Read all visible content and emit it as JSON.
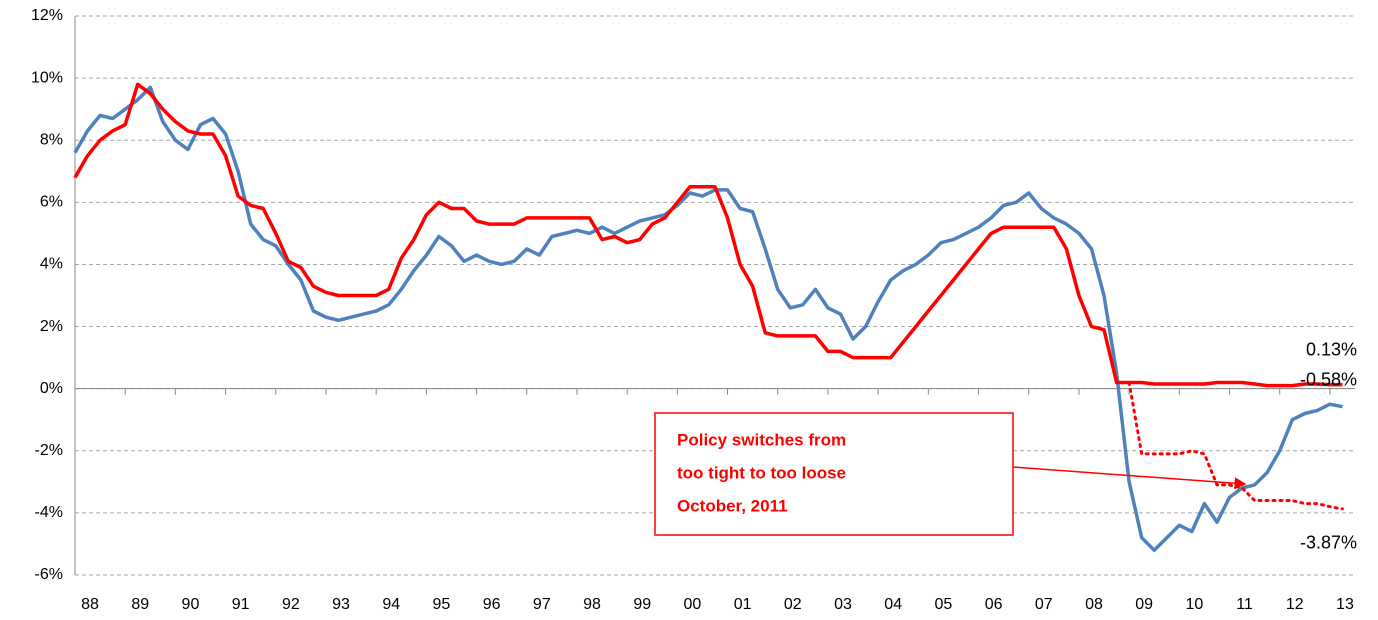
{
  "chart_data": {
    "type": "line",
    "ylim": [
      -6,
      12
    ],
    "yticks": [
      {
        "value": -6,
        "label": "-6%"
      },
      {
        "value": -4,
        "label": "-4%"
      },
      {
        "value": -2,
        "label": "-2%"
      },
      {
        "value": 0,
        "label": "0%"
      },
      {
        "value": 2,
        "label": "2%"
      },
      {
        "value": 4,
        "label": "4%"
      },
      {
        "value": 6,
        "label": "6%"
      },
      {
        "value": 8,
        "label": "8%"
      },
      {
        "value": 10,
        "label": "10%"
      },
      {
        "value": 12,
        "label": "12%"
      }
    ],
    "xlim": [
      1988,
      2013.5
    ],
    "xticks": [
      {
        "value": 1988,
        "label": "88"
      },
      {
        "value": 1989,
        "label": "89"
      },
      {
        "value": 1990,
        "label": "90"
      },
      {
        "value": 1991,
        "label": "91"
      },
      {
        "value": 1992,
        "label": "92"
      },
      {
        "value": 1993,
        "label": "93"
      },
      {
        "value": 1994,
        "label": "94"
      },
      {
        "value": 1995,
        "label": "95"
      },
      {
        "value": 1996,
        "label": "96"
      },
      {
        "value": 1997,
        "label": "97"
      },
      {
        "value": 1998,
        "label": "98"
      },
      {
        "value": 1999,
        "label": "99"
      },
      {
        "value": 2000,
        "label": "00"
      },
      {
        "value": 2001,
        "label": "01"
      },
      {
        "value": 2002,
        "label": "02"
      },
      {
        "value": 2003,
        "label": "03"
      },
      {
        "value": 2004,
        "label": "04"
      },
      {
        "value": 2005,
        "label": "05"
      },
      {
        "value": 2006,
        "label": "06"
      },
      {
        "value": 2007,
        "label": "07"
      },
      {
        "value": 2008,
        "label": "08"
      },
      {
        "value": 2009,
        "label": "09"
      },
      {
        "value": 2010,
        "label": "10"
      },
      {
        "value": 2011,
        "label": "11"
      },
      {
        "value": 2012,
        "label": "12"
      },
      {
        "value": 2013,
        "label": "13"
      }
    ],
    "grid": true,
    "x": [
      1988,
      1988.25,
      1988.5,
      1988.75,
      1989,
      1989.25,
      1989.5,
      1989.75,
      1990,
      1990.25,
      1990.5,
      1990.75,
      1991,
      1991.25,
      1991.5,
      1991.75,
      1992,
      1992.25,
      1992.5,
      1992.75,
      1993,
      1993.25,
      1993.5,
      1993.75,
      1994,
      1994.25,
      1994.5,
      1994.75,
      1995,
      1995.25,
      1995.5,
      1995.75,
      1996,
      1996.25,
      1996.5,
      1996.75,
      1997,
      1997.25,
      1997.5,
      1997.75,
      1998,
      1998.25,
      1998.5,
      1998.75,
      1999,
      1999.25,
      1999.5,
      1999.75,
      2000,
      2000.25,
      2000.5,
      2000.75,
      2001,
      2001.25,
      2001.5,
      2001.75,
      2002,
      2002.25,
      2002.5,
      2002.75,
      2003,
      2003.25,
      2003.5,
      2003.75,
      2004,
      2004.25,
      2004.5,
      2004.75,
      2005,
      2005.25,
      2005.5,
      2005.75,
      2006,
      2006.25,
      2006.5,
      2006.75,
      2007,
      2007.25,
      2007.5,
      2007.75,
      2008,
      2008.25,
      2008.5,
      2008.75,
      2009,
      2009.25,
      2009.5,
      2009.75,
      2010,
      2010.25,
      2010.5,
      2010.75,
      2011,
      2011.25,
      2011.5,
      2011.75,
      2012,
      2012.25,
      2012.5,
      2012.75,
      2013,
      2013.25
    ],
    "series": [
      {
        "color": "#4f81bd",
        "last_label": "-0.58%",
        "values": [
          7.6,
          8.3,
          8.8,
          8.7,
          9.0,
          9.3,
          9.7,
          8.6,
          8.0,
          7.7,
          8.5,
          8.7,
          8.2,
          7.0,
          5.3,
          4.8,
          4.6,
          4.0,
          3.5,
          2.5,
          2.3,
          2.2,
          2.3,
          2.4,
          2.5,
          2.7,
          3.2,
          3.8,
          4.3,
          4.9,
          4.6,
          4.1,
          4.3,
          4.1,
          4.0,
          4.1,
          4.5,
          4.3,
          4.9,
          5.0,
          5.1,
          5.0,
          5.2,
          5.0,
          5.2,
          5.4,
          5.5,
          5.6,
          5.9,
          6.3,
          6.2,
          6.4,
          6.4,
          5.8,
          5.7,
          4.5,
          3.2,
          2.6,
          2.7,
          3.2,
          2.6,
          2.4,
          1.6,
          2.0,
          2.8,
          3.5,
          3.8,
          4.0,
          4.3,
          4.7,
          4.8,
          5.0,
          5.2,
          5.5,
          5.9,
          6.0,
          6.3,
          5.8,
          5.5,
          5.3,
          5.0,
          4.5,
          3.0,
          0.5,
          -3.0,
          -4.8,
          -5.2,
          -4.8,
          -4.4,
          -4.6,
          -3.7,
          -4.3,
          -3.5,
          -3.2,
          -3.1,
          -2.7,
          -2.0,
          -1.0,
          -0.8,
          -0.7,
          -0.5,
          -0.58
        ]
      },
      {
        "color": "#ff0000",
        "last_label": "0.13%",
        "values": [
          6.8,
          7.5,
          8.0,
          8.3,
          8.5,
          9.8,
          9.5,
          9.0,
          8.6,
          8.3,
          8.2,
          8.2,
          7.5,
          6.2,
          5.9,
          5.8,
          5.0,
          4.1,
          3.9,
          3.3,
          3.1,
          3.0,
          3.0,
          3.0,
          3.0,
          3.2,
          4.2,
          4.8,
          5.6,
          6.0,
          5.8,
          5.8,
          5.4,
          5.3,
          5.3,
          5.3,
          5.5,
          5.5,
          5.5,
          5.5,
          5.5,
          5.5,
          4.8,
          4.9,
          4.7,
          4.8,
          5.3,
          5.5,
          6.0,
          6.5,
          6.5,
          6.5,
          5.5,
          4.0,
          3.3,
          1.8,
          1.7,
          1.7,
          1.7,
          1.7,
          1.2,
          1.2,
          1.0,
          1.0,
          1.0,
          1.0,
          1.5,
          2.0,
          2.5,
          3.0,
          3.5,
          4.0,
          4.5,
          5.0,
          5.2,
          5.2,
          5.2,
          5.2,
          5.2,
          4.5,
          3.0,
          2.0,
          1.9,
          0.2,
          0.2,
          0.2,
          0.15,
          0.15,
          0.15,
          0.15,
          0.15,
          0.2,
          0.2,
          0.2,
          0.15,
          0.1,
          0.1,
          0.1,
          0.15,
          0.15,
          0.13,
          0.13
        ]
      },
      {
        "color": "#ff0000",
        "dashed": true,
        "last_label": "-3.87%",
        "x": [
          2009,
          2009.25,
          2009.5,
          2009.75,
          2010,
          2010.25,
          2010.5,
          2010.75,
          2011,
          2011.25,
          2011.5,
          2011.75,
          2012,
          2012.25,
          2012.5,
          2012.75,
          2013,
          2013.25
        ],
        "values": [
          0.2,
          -2.1,
          -2.1,
          -2.1,
          -2.1,
          -2.0,
          -2.1,
          -3.1,
          -3.1,
          -3.2,
          -3.6,
          -3.6,
          -3.6,
          -3.6,
          -3.7,
          -3.7,
          -3.8,
          -3.87
        ]
      }
    ],
    "annotation": [
      "Policy switches from",
      "too tight to too loose",
      "October, 2011"
    ]
  }
}
